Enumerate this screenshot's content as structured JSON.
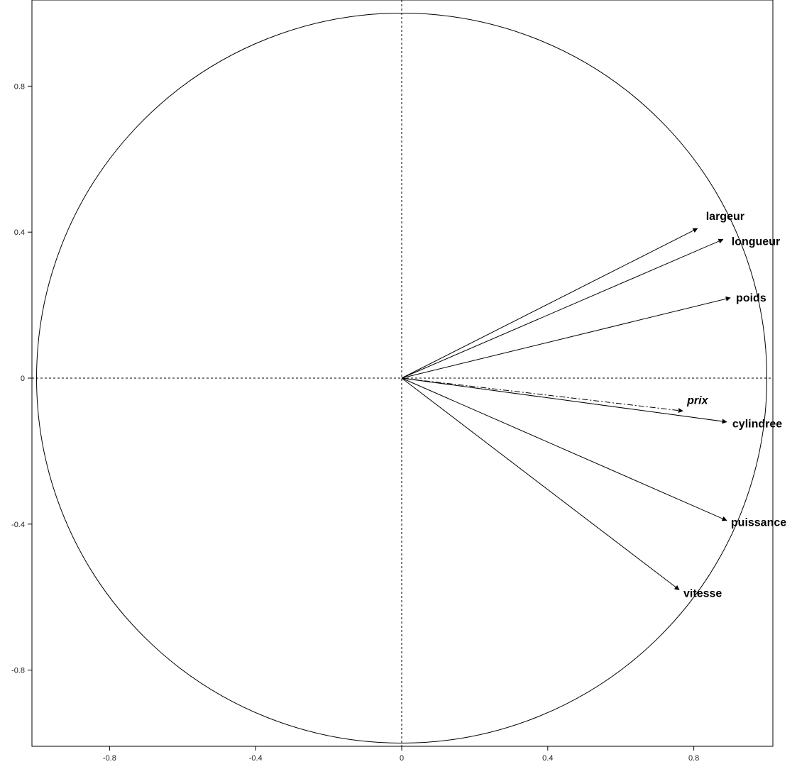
{
  "chart_data": {
    "type": "correlation-circle",
    "title": "",
    "xlabel": "",
    "ylabel": "",
    "xlim": [
      -1.0,
      1.02
    ],
    "ylim": [
      -1.0,
      1.0
    ],
    "xticks": [
      {
        "value": -0.8,
        "label": "-0.8"
      },
      {
        "value": -0.4,
        "label": "-0.4"
      },
      {
        "value": 0,
        "label": "0"
      },
      {
        "value": 0.4,
        "label": "0.4"
      },
      {
        "value": 0.8,
        "label": "0.8"
      }
    ],
    "yticks": [
      {
        "value": 0.8,
        "label": "0.8"
      },
      {
        "value": 0.4,
        "label": "0.4"
      },
      {
        "value": 0,
        "label": "0"
      },
      {
        "value": -0.4,
        "label": "-0.4"
      },
      {
        "value": -0.8,
        "label": "-0.8"
      }
    ],
    "circle_radius": 1,
    "variables": [
      {
        "name": "largeur",
        "x": 0.81,
        "y": 0.41,
        "supplementary": false
      },
      {
        "name": "longueur",
        "x": 0.88,
        "y": 0.38,
        "supplementary": false
      },
      {
        "name": "poids",
        "x": 0.9,
        "y": 0.22,
        "supplementary": false
      },
      {
        "name": "cylindree",
        "x": 0.89,
        "y": -0.12,
        "supplementary": false
      },
      {
        "name": "puissance",
        "x": 0.89,
        "y": -0.39,
        "supplementary": false
      },
      {
        "name": "vitesse",
        "x": 0.76,
        "y": -0.58,
        "supplementary": false
      },
      {
        "name": "prix",
        "x": 0.77,
        "y": -0.09,
        "supplementary": true
      }
    ]
  }
}
